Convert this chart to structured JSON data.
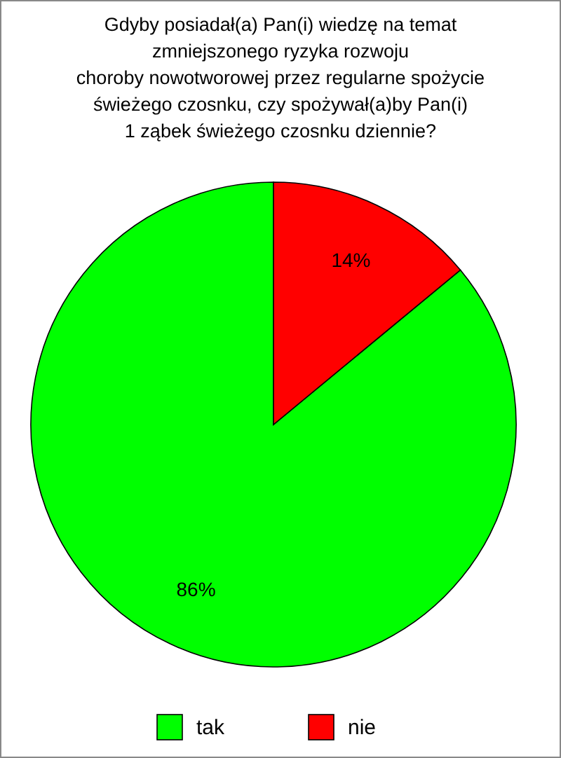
{
  "chart_data": {
    "type": "pie",
    "title": "Gdyby posiadał(a) Pan(i) wiedzę na temat\nzmniejszonego ryzyka rozwoju\nchoroby nowotworowej przez regularne spożycie\nświeżego czosnku, czy spożywał(a)by Pan(i)\n1 ząbek świeżego czosnku dziennie?",
    "categories": [
      "tak",
      "nie"
    ],
    "values": [
      86,
      14
    ],
    "colors": [
      "#00ff00",
      "#ff0000"
    ],
    "value_labels": [
      "86%",
      "14%"
    ],
    "legend": "bottom"
  }
}
